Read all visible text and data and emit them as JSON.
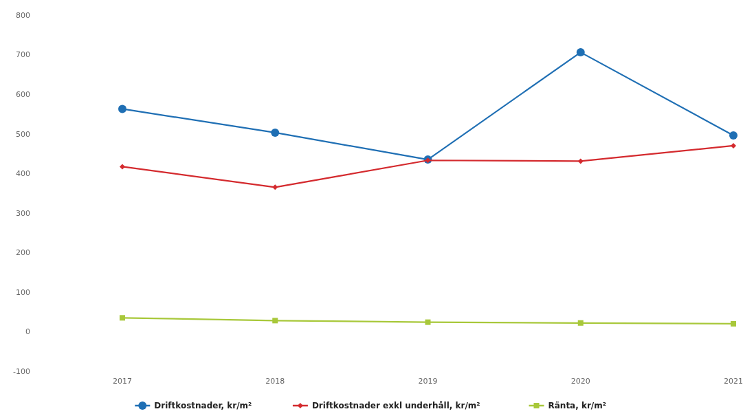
{
  "chart_data": {
    "type": "line",
    "categories": [
      "2017",
      "2018",
      "2019",
      "2020",
      "2021"
    ],
    "series": [
      {
        "name": "Driftkostnader, kr/m²",
        "color": "#1f6fb4",
        "marker": "circle",
        "values": [
          563,
          503,
          435,
          706,
          496
        ]
      },
      {
        "name": "Driftkostnader exkl underhåll, kr/m²",
        "color": "#d42a2e",
        "marker": "diamond",
        "values": [
          417,
          365,
          433,
          431,
          470
        ]
      },
      {
        "name": "Ränta, kr/m²",
        "color": "#a8c83a",
        "marker": "square",
        "values": [
          35,
          28,
          24,
          22,
          20
        ]
      }
    ],
    "ylim": [
      -100,
      800
    ],
    "yticks": [
      -100,
      0,
      100,
      200,
      300,
      400,
      500,
      600,
      700,
      800
    ],
    "grid": false,
    "legend": "bottom",
    "line_style": "solid"
  }
}
